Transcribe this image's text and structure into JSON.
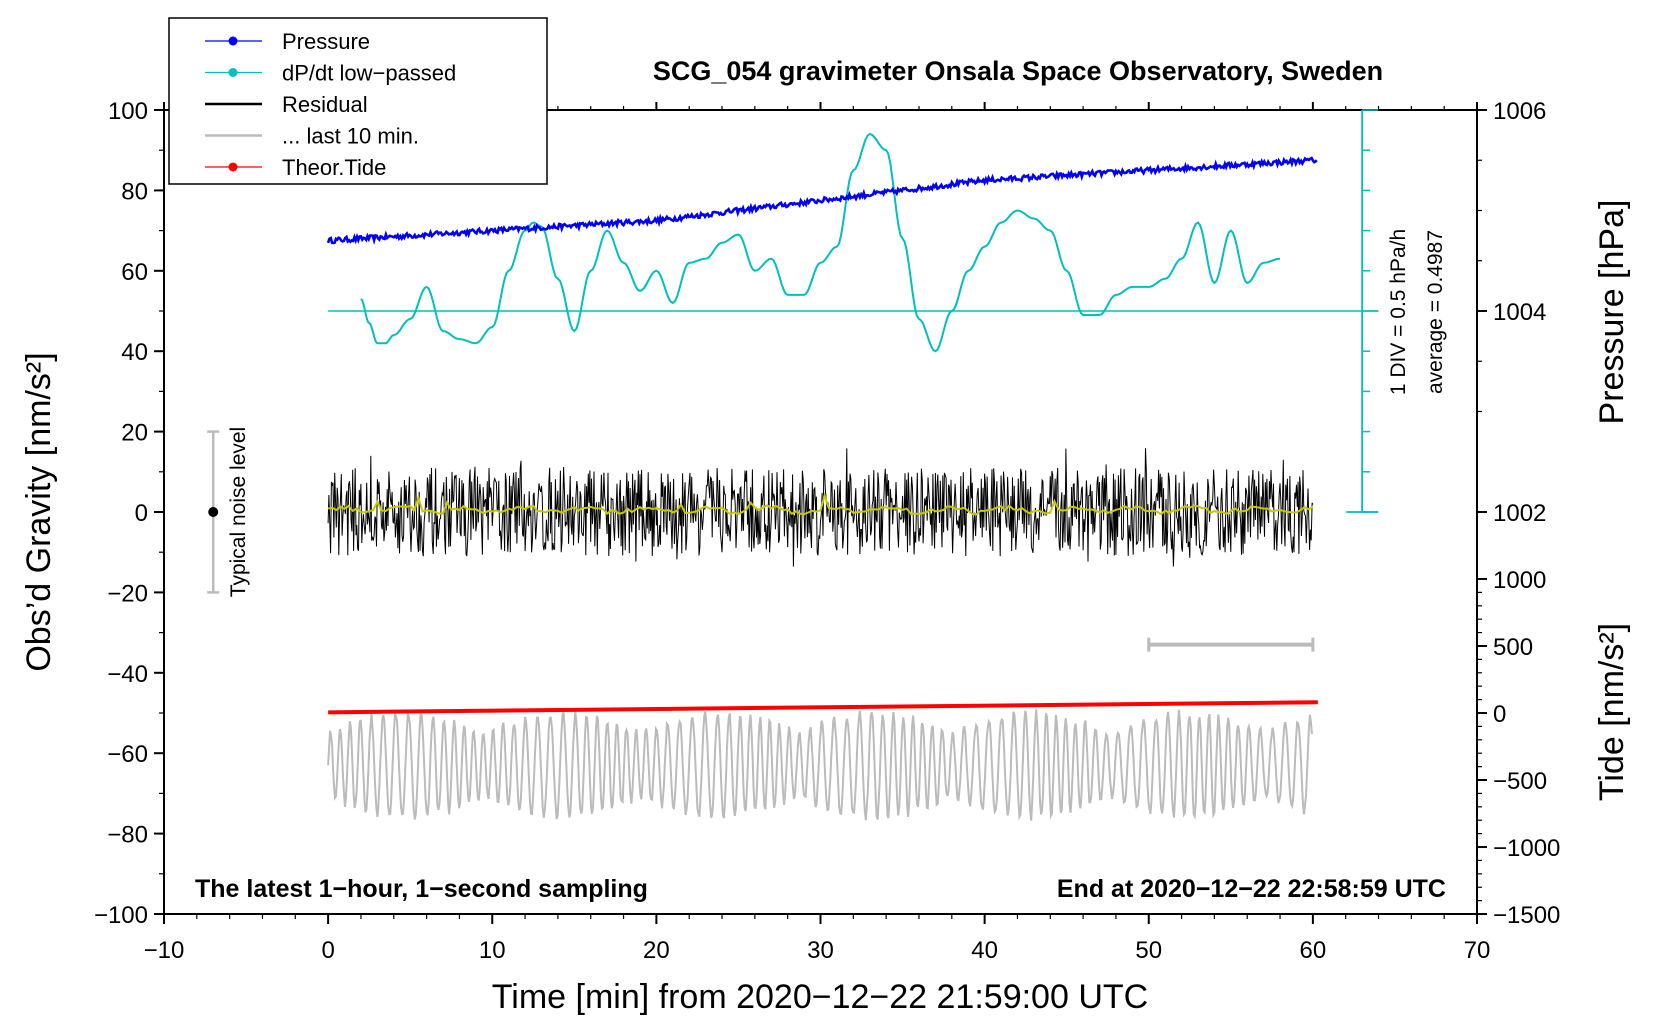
{
  "chart_data": {
    "type": "line",
    "title": "SCG_054 gravimeter Onsala Space Observatory, Sweden",
    "xlabel": "Time [min] from 2020−12−22 21:59:00 UTC",
    "ylabel_left": "Obs’d Gravity [nm/s²]",
    "ylabel_right_pressure": "Pressure [hPa]",
    "ylabel_right_tide": "Tide [nm/s²]",
    "xlim": [
      -10,
      70
    ],
    "ylim": [
      -100,
      100
    ],
    "x_ticks": [
      -10,
      0,
      10,
      20,
      30,
      40,
      50,
      60,
      70
    ],
    "x_tick_labels": [
      "−10",
      "0",
      "10",
      "20",
      "30",
      "40",
      "50",
      "60",
      "70"
    ],
    "y_ticks": [
      -100,
      -80,
      -60,
      -40,
      -20,
      0,
      20,
      40,
      60,
      80,
      100
    ],
    "y_tick_labels": [
      "−100",
      "−80",
      "−60",
      "−40",
      "−20",
      "0",
      "20",
      "40",
      "60",
      "80",
      "100"
    ],
    "pressure_axis": {
      "ticks": [
        1002,
        1004,
        1006
      ],
      "tick_labels": [
        "1002",
        "1004",
        "1006"
      ],
      "left_equivalent_at_1004": 50,
      "gravity_per_hPa": 25
    },
    "tide_axis": {
      "ticks": [
        -1500,
        -1000,
        -500,
        0,
        500,
        1000
      ],
      "tick_labels": [
        "−1500",
        "−1000",
        "−500",
        "0",
        "500",
        "1000"
      ],
      "gravity_at_0": -50,
      "gravity_per_500": 16.67
    },
    "legend": {
      "placement": "top-left",
      "entries": [
        {
          "label": "Pressure",
          "color": "#0000ff",
          "marker": true
        },
        {
          "label": "dP/dt low−passed",
          "color": "#00c0c0",
          "marker": true
        },
        {
          "label": "Residual",
          "color": "#000000",
          "marker": false
        },
        {
          "label": "... last 10 min.",
          "color": "#bbbbbb",
          "marker": false
        },
        {
          "label": "Theor.Tide",
          "color": "#ff0000",
          "marker": true
        }
      ]
    },
    "series": [
      {
        "name": "Pressure",
        "color": "#0000ff",
        "unit": "hPa",
        "x": [
          0,
          10,
          20,
          30,
          40,
          50,
          60
        ],
        "values": [
          1004.7,
          1004.8,
          1004.9,
          1005.1,
          1005.3,
          1005.4,
          1005.5
        ]
      },
      {
        "name": "dP/dt low−passed",
        "color": "#00c0c0",
        "unit": "nm/s² equiv.",
        "x": [
          2,
          2.5,
          3,
          3.5,
          4,
          5,
          6,
          7,
          8,
          9,
          10,
          11,
          12,
          12.5,
          13,
          14,
          15,
          16,
          17,
          18,
          19,
          20,
          21,
          22,
          23,
          24,
          25,
          26,
          27,
          28,
          29,
          30,
          31,
          32,
          33,
          34,
          35,
          36,
          37,
          38,
          39,
          40,
          41,
          42,
          43,
          44,
          45,
          46,
          47,
          48,
          49,
          50,
          51,
          52,
          53,
          54,
          55,
          56,
          57,
          58
        ],
        "values": [
          53,
          47,
          42,
          42,
          44,
          48,
          56,
          45,
          43,
          42,
          46,
          60,
          70,
          72,
          71,
          58,
          45,
          60,
          70,
          62,
          55,
          60,
          52,
          62,
          63,
          67,
          69,
          60,
          63,
          54,
          54,
          62,
          66,
          85,
          94,
          90,
          68,
          48,
          40,
          50,
          60,
          66,
          72,
          75,
          73,
          70,
          60,
          49,
          49,
          54,
          56,
          56,
          58,
          63,
          72,
          57,
          70,
          57,
          62,
          63
        ]
      },
      {
        "name": "Residual",
        "color": "#000000",
        "amplitude_range": [
          -18,
          18
        ],
        "x_range": [
          0,
          60
        ]
      },
      {
        "name": "Residual smoothed",
        "color": "#c8c800",
        "x_range": [
          0,
          60
        ],
        "approx_value": 0
      },
      {
        "name": "... last 10 min.",
        "color": "#bbbbbb",
        "x_range": [
          0,
          60
        ],
        "center": -63,
        "amplitude_range": [
          -80,
          -47
        ]
      },
      {
        "name": "Theor.Tide",
        "color": "#ff0000",
        "unit": "nm/s²",
        "x": [
          0,
          60
        ],
        "values": [
          5,
          80
        ]
      }
    ],
    "baselines": [
      {
        "name": "dP/dt zero line",
        "color": "#00c0c0",
        "y": 50,
        "x_range": [
          0,
          64
        ]
      }
    ],
    "scale_bar": {
      "label_div": "1 DIV = 0.5 hPa/h",
      "label_avg": "average = 0.4987",
      "color": "#00c0c0",
      "y_range": [
        0,
        100
      ]
    },
    "noise_bar": {
      "label": "Typical noise level",
      "x": -7,
      "y_range": [
        -20,
        20
      ]
    },
    "last10_marker": {
      "x_range": [
        50,
        60
      ],
      "y": -33
    },
    "annotations": {
      "bottom_left": "The latest 1−hour, 1−second sampling",
      "bottom_right": "End at 2020−12−22 22:58:59 UTC"
    }
  }
}
